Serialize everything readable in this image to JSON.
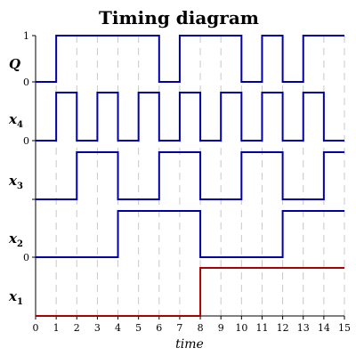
{
  "title": "Timing diagram",
  "xlabel": "time",
  "chart_data": {
    "type": "timing",
    "xlim": [
      0,
      15
    ],
    "x_ticks": [
      "0",
      "1",
      "2",
      "3",
      "4",
      "5",
      "6",
      "7",
      "8",
      "9",
      "10",
      "11",
      "12",
      "13",
      "14",
      "15"
    ],
    "grid": "dashed vertical",
    "signals": [
      {
        "name": "Q",
        "sub": "",
        "color": "#0000aa",
        "ticks": [
          "1",
          "0"
        ],
        "transitions": [
          [
            0,
            0
          ],
          [
            1,
            1
          ],
          [
            6,
            0
          ],
          [
            7,
            1
          ],
          [
            10,
            0
          ],
          [
            11,
            1
          ],
          [
            12,
            0
          ],
          [
            13,
            1
          ],
          [
            15,
            1
          ]
        ]
      },
      {
        "name": "x",
        "sub": "4",
        "color": "#0000aa",
        "ticks": [
          "0"
        ],
        "transitions": [
          [
            0,
            0
          ],
          [
            1,
            1
          ],
          [
            2,
            0
          ],
          [
            3,
            1
          ],
          [
            4,
            0
          ],
          [
            5,
            1
          ],
          [
            6,
            0
          ],
          [
            7,
            1
          ],
          [
            8,
            0
          ],
          [
            9,
            1
          ],
          [
            10,
            0
          ],
          [
            11,
            1
          ],
          [
            12,
            0
          ],
          [
            13,
            1
          ],
          [
            14,
            0
          ],
          [
            15,
            0
          ]
        ]
      },
      {
        "name": "x",
        "sub": "3",
        "color": "#0000aa",
        "ticks": [],
        "transitions": [
          [
            0,
            0
          ],
          [
            2,
            1
          ],
          [
            4,
            0
          ],
          [
            6,
            1
          ],
          [
            8,
            0
          ],
          [
            10,
            1
          ],
          [
            12,
            0
          ],
          [
            14,
            1
          ],
          [
            15,
            1
          ]
        ]
      },
      {
        "name": "x",
        "sub": "2",
        "color": "#0000aa",
        "ticks": [
          "0"
        ],
        "transitions": [
          [
            0,
            0
          ],
          [
            4,
            1
          ],
          [
            8,
            0
          ],
          [
            12,
            1
          ],
          [
            15,
            1
          ]
        ]
      },
      {
        "name": "x",
        "sub": "1",
        "color": "#aa0000",
        "ticks": [],
        "transitions": [
          [
            0,
            0
          ],
          [
            8,
            1
          ],
          [
            15,
            1
          ]
        ]
      }
    ]
  }
}
